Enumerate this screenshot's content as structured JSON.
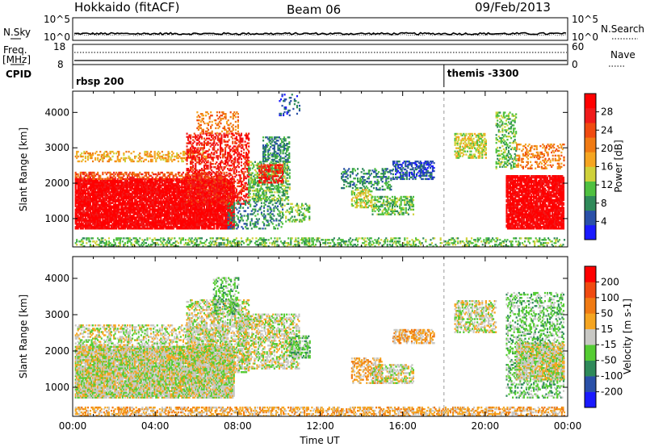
{
  "header": {
    "title": "Hokkaido (fitACF)",
    "beam": "Beam 06",
    "date": "09/Feb/2013"
  },
  "top_panels": {
    "nsky_label": "N.Sky",
    "nsearch_label": "N.Search",
    "freq_label_1": "Freq.",
    "freq_label_2": "[MHz]",
    "nave_label": "Nave",
    "cpid_label": "CPID",
    "nsky_tick_top": "10^5",
    "nsky_tick_bottom": "10^0",
    "freq_tick_top": "18",
    "freq_tick_bottom": "8",
    "nave_tick_top": "60",
    "nave_tick_bottom": "0",
    "cpid_1": "rbsp 200",
    "cpid_2": "themis -3300",
    "cpid_2_time_hours": 18.0
  },
  "colors": {
    "power_scale": [
      "#1a1aff",
      "#2a50a8",
      "#2f8a5a",
      "#4fc040",
      "#cfd13a",
      "#f5a521",
      "#f07a13",
      "#f04a10",
      "#f01a1a",
      "#ff0000"
    ],
    "velocity_scale": [
      "#1a1aff",
      "#2a50a8",
      "#2f8a5a",
      "#55cc33",
      "#c8c8c4",
      "#f5a521",
      "#f07a13",
      "#f04a10",
      "#ff0000"
    ]
  },
  "chart_data": [
    {
      "type": "heatmap",
      "name": "power",
      "xlabel": "",
      "ylabel": "Slant Range [km]",
      "xlim": [
        0,
        24
      ],
      "ylim": [
        200,
        4600
      ],
      "yticks": [
        1000,
        2000,
        3000,
        4000
      ],
      "colorbar_label": "Power [dB]",
      "colorbar_ticks": [
        "4",
        "8",
        "12",
        "16",
        "20",
        "24",
        "28"
      ],
      "colorbar_range": [
        0,
        32
      ],
      "regions": [
        {
          "t0": 0.1,
          "t1": 7.8,
          "r0": 700,
          "r1": 2100,
          "level": 9,
          "density": 0.92
        },
        {
          "t0": 0.1,
          "t1": 7.5,
          "r0": 2100,
          "r1": 2300,
          "level": 7,
          "density": 0.5
        },
        {
          "t0": 0.1,
          "t1": 6.5,
          "r0": 2600,
          "r1": 2900,
          "level": 5,
          "density": 0.35
        },
        {
          "t0": 5.5,
          "t1": 8.5,
          "r0": 1400,
          "r1": 3400,
          "level": 8,
          "density": 0.45
        },
        {
          "t0": 6.0,
          "t1": 8.0,
          "r0": 3400,
          "r1": 4000,
          "level": 6,
          "density": 0.25
        },
        {
          "t0": 7.5,
          "t1": 10.2,
          "r0": 700,
          "r1": 1500,
          "level": 2,
          "density": 0.3
        },
        {
          "t0": 8.5,
          "t1": 10.5,
          "r0": 1500,
          "r1": 2600,
          "level": 3,
          "density": 0.5
        },
        {
          "t0": 9.0,
          "t1": 10.2,
          "r0": 2000,
          "r1": 2500,
          "level": 8,
          "density": 0.5
        },
        {
          "t0": 9.2,
          "t1": 10.5,
          "r0": 2600,
          "r1": 3300,
          "level": 2,
          "density": 0.5
        },
        {
          "t0": 10.0,
          "t1": 11.0,
          "r0": 3900,
          "r1": 4500,
          "level": 1,
          "density": 0.2
        },
        {
          "t0": 10.0,
          "t1": 11.5,
          "r0": 900,
          "r1": 1400,
          "level": 3,
          "density": 0.35
        },
        {
          "t0": 13.0,
          "t1": 15.5,
          "r0": 1800,
          "r1": 2400,
          "level": 2,
          "density": 0.35
        },
        {
          "t0": 13.5,
          "t1": 14.5,
          "r0": 1300,
          "r1": 1800,
          "level": 4,
          "density": 0.5
        },
        {
          "t0": 14.5,
          "t1": 16.5,
          "r0": 1100,
          "r1": 1600,
          "level": 3,
          "density": 0.55
        },
        {
          "t0": 15.5,
          "t1": 17.5,
          "r0": 2100,
          "r1": 2600,
          "level": 1,
          "density": 0.5
        },
        {
          "t0": 18.5,
          "t1": 20.0,
          "r0": 2700,
          "r1": 3400,
          "level": 4,
          "density": 0.55
        },
        {
          "t0": 20.5,
          "t1": 21.5,
          "r0": 2400,
          "r1": 4000,
          "level": 3,
          "density": 0.35
        },
        {
          "t0": 21.0,
          "t1": 23.8,
          "r0": 700,
          "r1": 2200,
          "level": 9,
          "density": 0.9
        },
        {
          "t0": 21.5,
          "t1": 23.8,
          "r0": 2400,
          "r1": 3100,
          "level": 6,
          "density": 0.35
        },
        {
          "t0": 0.1,
          "t1": 23.8,
          "r0": 200,
          "r1": 450,
          "level": 3,
          "density": 0.35
        }
      ]
    },
    {
      "type": "heatmap",
      "name": "velocity",
      "xlabel": "Time UT",
      "ylabel": "Slant Range [km]",
      "xlim": [
        0,
        24
      ],
      "ylim": [
        200,
        4600
      ],
      "yticks": [
        1000,
        2000,
        3000,
        4000
      ],
      "xticks": [
        "00:00",
        "04:00",
        "08:00",
        "12:00",
        "16:00",
        "20:00",
        "00:00"
      ],
      "colorbar_label": "Velocity [m s-1]",
      "colorbar_ticks": [
        "-200",
        "-100",
        "-50",
        "-15",
        "15",
        "50",
        "100",
        "200"
      ],
      "colorbar_range": [
        -250,
        250
      ],
      "regions": [
        {
          "t0": 0.1,
          "t1": 7.8,
          "r0": 700,
          "r1": 2100,
          "level": 4,
          "density": 0.92
        },
        {
          "t0": 0.1,
          "t1": 7.5,
          "r0": 2100,
          "r1": 2700,
          "level": 4,
          "density": 0.4
        },
        {
          "t0": 5.5,
          "t1": 8.5,
          "r0": 1400,
          "r1": 3400,
          "level": 4,
          "density": 0.5
        },
        {
          "t0": 6.8,
          "t1": 8.0,
          "r0": 3000,
          "r1": 4000,
          "level": 3,
          "density": 0.4
        },
        {
          "t0": 8.0,
          "t1": 11.0,
          "r0": 1500,
          "r1": 3000,
          "level": 4,
          "density": 0.5
        },
        {
          "t0": 10.5,
          "t1": 11.5,
          "r0": 1800,
          "r1": 2400,
          "level": 3,
          "density": 0.5
        },
        {
          "t0": 13.5,
          "t1": 15.0,
          "r0": 1100,
          "r1": 1800,
          "level": 5,
          "density": 0.45
        },
        {
          "t0": 14.5,
          "t1": 16.5,
          "r0": 1100,
          "r1": 1600,
          "level": 4,
          "density": 0.5
        },
        {
          "t0": 15.5,
          "t1": 17.5,
          "r0": 2200,
          "r1": 2600,
          "level": 5,
          "density": 0.6
        },
        {
          "t0": 18.5,
          "t1": 20.5,
          "r0": 2500,
          "r1": 3400,
          "level": 4,
          "density": 0.5
        },
        {
          "t0": 21.0,
          "t1": 23.8,
          "r0": 700,
          "r1": 3600,
          "level": 3,
          "density": 0.35
        },
        {
          "t0": 21.5,
          "t1": 23.8,
          "r0": 1200,
          "r1": 2200,
          "level": 4,
          "density": 0.75
        },
        {
          "t0": 0.1,
          "t1": 23.8,
          "r0": 200,
          "r1": 450,
          "level": 5,
          "density": 0.5
        }
      ]
    }
  ]
}
